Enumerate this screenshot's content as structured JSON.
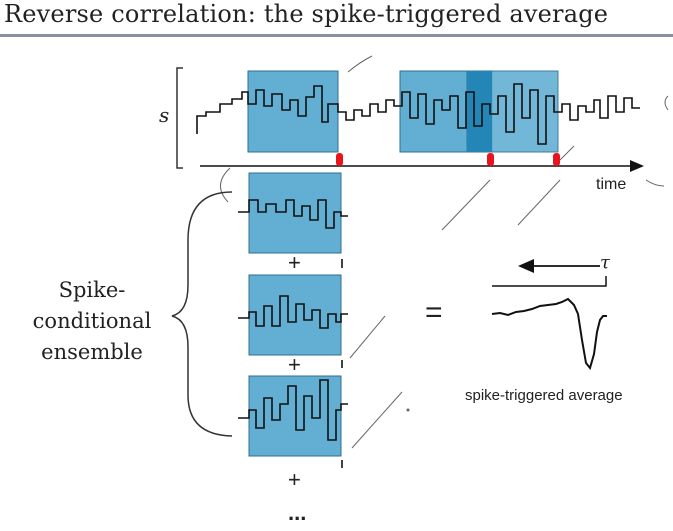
{
  "slide": {
    "title": "Reverse correlation: the spike-triggered average",
    "stimulus_symbol": "s",
    "time_label": "time",
    "tau_symbol": "τ",
    "ensemble_label": [
      "Spike-",
      "conditional",
      "ensemble"
    ],
    "plus_sign": "+",
    "equals_sign": "=",
    "ellipsis": "...",
    "sta_label": "spike-triggered average"
  },
  "colors": {
    "window_fill": "#63afd4",
    "window_overlap": "#2486b6",
    "spike_marker": "#e8141b",
    "trace": "#111111",
    "title_rule": "#8a8fa6"
  }
}
